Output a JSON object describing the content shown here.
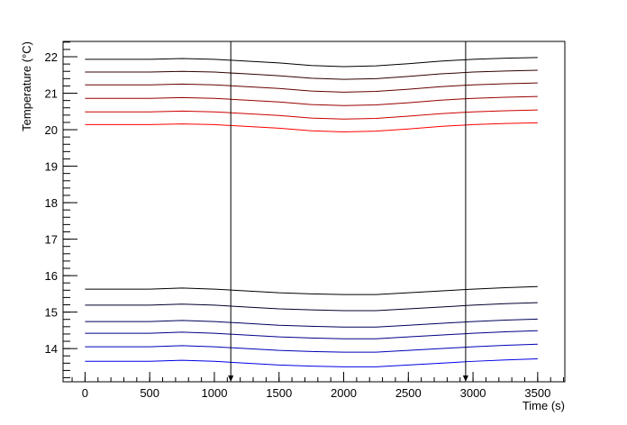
{
  "chart_data": {
    "type": "line",
    "xlabel": "Time (s)",
    "ylabel": "Temperature (°C)",
    "x": [
      0,
      250,
      500,
      750,
      1000,
      1250,
      1500,
      1750,
      2000,
      2250,
      2500,
      2750,
      3000,
      3250,
      3500
    ],
    "series": [
      {
        "color": "#000000",
        "values": [
          21.93,
          21.93,
          21.93,
          21.95,
          21.93,
          21.88,
          21.83,
          21.76,
          21.73,
          21.75,
          21.81,
          21.88,
          21.93,
          21.96,
          21.98
        ]
      },
      {
        "color": "#330000",
        "values": [
          21.58,
          21.58,
          21.58,
          21.6,
          21.58,
          21.53,
          21.48,
          21.41,
          21.38,
          21.4,
          21.46,
          21.53,
          21.58,
          21.61,
          21.63
        ]
      },
      {
        "color": "#660000",
        "values": [
          21.23,
          21.23,
          21.23,
          21.25,
          21.23,
          21.18,
          21.13,
          21.06,
          21.03,
          21.05,
          21.11,
          21.18,
          21.23,
          21.26,
          21.28
        ]
      },
      {
        "color": "#990000",
        "values": [
          20.86,
          20.86,
          20.86,
          20.88,
          20.86,
          20.81,
          20.76,
          20.69,
          20.66,
          20.68,
          20.74,
          20.81,
          20.86,
          20.89,
          20.91
        ]
      },
      {
        "color": "#cc0000",
        "values": [
          20.49,
          20.49,
          20.49,
          20.51,
          20.49,
          20.44,
          20.39,
          20.32,
          20.29,
          20.31,
          20.37,
          20.44,
          20.49,
          20.52,
          20.54
        ]
      },
      {
        "color": "#ff0000",
        "values": [
          20.14,
          20.14,
          20.14,
          20.16,
          20.14,
          20.09,
          20.04,
          19.97,
          19.94,
          19.96,
          20.02,
          20.09,
          20.14,
          20.17,
          20.19
        ]
      },
      {
        "color": "#000000",
        "values": [
          15.63,
          15.63,
          15.63,
          15.66,
          15.63,
          15.58,
          15.53,
          15.5,
          15.48,
          15.48,
          15.53,
          15.58,
          15.63,
          15.67,
          15.7
        ]
      },
      {
        "color": "#00002e",
        "values": [
          15.19,
          15.19,
          15.19,
          15.22,
          15.19,
          15.14,
          15.09,
          15.06,
          15.04,
          15.04,
          15.09,
          15.14,
          15.19,
          15.23,
          15.26
        ]
      },
      {
        "color": "#00005c",
        "values": [
          14.74,
          14.74,
          14.74,
          14.77,
          14.74,
          14.69,
          14.64,
          14.61,
          14.59,
          14.59,
          14.64,
          14.69,
          14.74,
          14.78,
          14.81
        ]
      },
      {
        "color": "#00008a",
        "values": [
          14.42,
          14.42,
          14.42,
          14.45,
          14.42,
          14.37,
          14.32,
          14.29,
          14.27,
          14.27,
          14.32,
          14.37,
          14.42,
          14.46,
          14.49
        ]
      },
      {
        "color": "#0000b8",
        "values": [
          14.05,
          14.05,
          14.05,
          14.08,
          14.05,
          14.0,
          13.95,
          13.92,
          13.9,
          13.9,
          13.95,
          14.0,
          14.05,
          14.09,
          14.12
        ]
      },
      {
        "color": "#0000e6",
        "values": [
          13.65,
          13.65,
          13.65,
          13.68,
          13.65,
          13.6,
          13.55,
          13.52,
          13.5,
          13.5,
          13.55,
          13.6,
          13.65,
          13.69,
          13.72
        ]
      }
    ],
    "vlines": [
      1127,
      2943
    ],
    "xlim": [
      -170,
      3710
    ],
    "ylim": [
      13.09,
      22.42
    ],
    "xticks": [
      0,
      500,
      1000,
      1500,
      2000,
      2500,
      3000,
      3500
    ],
    "yticks": [
      14,
      15,
      16,
      17,
      18,
      19,
      20,
      21,
      22
    ],
    "grid": false
  }
}
